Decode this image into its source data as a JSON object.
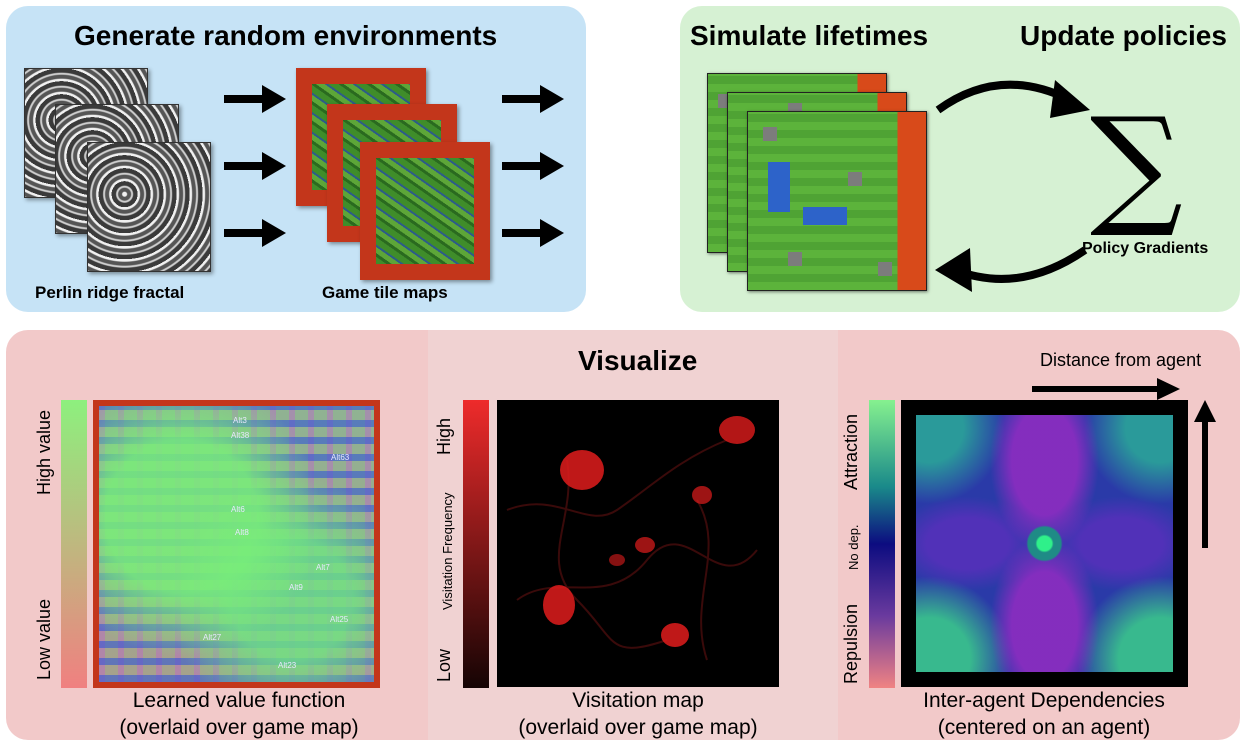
{
  "generate": {
    "title": "Generate random environments",
    "caption_left": "Perlin ridge fractal",
    "caption_right": "Game tile maps"
  },
  "simulate": {
    "title_left": "Simulate lifetimes",
    "title_right": "Update policies",
    "sigma_symbol": "∑",
    "sigma_caption": "Policy Gradients"
  },
  "visualize": {
    "title": "Visualize",
    "value_map": {
      "high_label": "High value",
      "low_label": "Low value",
      "caption_line1": "Learned value function",
      "caption_line2": "(overlaid over game map)",
      "agent_labels": [
        "Alt3",
        "Alt38",
        "Alt8",
        "Alt6",
        "Alt63",
        "Alt7",
        "Alt9",
        "Alt27",
        "Alt23",
        "Alt25"
      ]
    },
    "visitation_map": {
      "high_label": "High",
      "low_label": "Low",
      "axis_label": "Visitation Frequency",
      "caption_line1": "Visitation map",
      "caption_line2": "(overlaid over game map)"
    },
    "dependency_map": {
      "top_label": "Attraction",
      "mid_label": "No dep.",
      "bottom_label": "Repulsion",
      "distance_label": "Distance from agent",
      "caption_line1": "Inter-agent Dependencies",
      "caption_line2": "(centered on an agent)"
    }
  },
  "colors": {
    "generate_bg": "#c6e3f6",
    "simulate_bg": "#d6f1d3",
    "visualize_bg": "#f2c9c9",
    "tile_border": "#c3361b",
    "grass": "#4fa334",
    "water": "#2d63c9"
  }
}
